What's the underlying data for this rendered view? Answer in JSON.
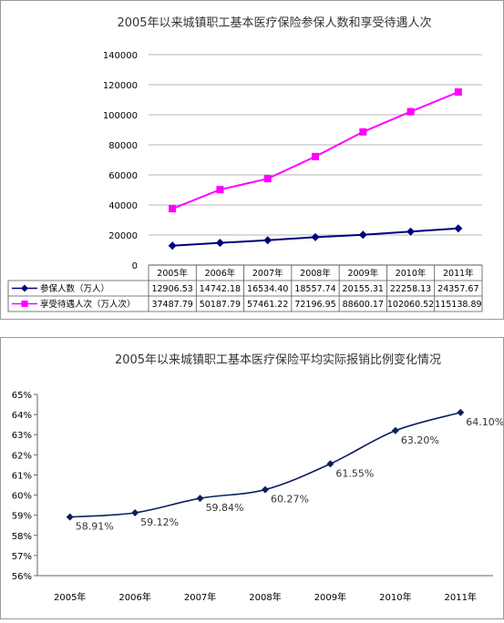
{
  "chart_data": [
    {
      "type": "line",
      "title": "2005年以来城镇职工基本医疗保险参保人数和享受待遇人次",
      "categories": [
        "2005年",
        "2006年",
        "2007年",
        "2008年",
        "2009年",
        "2010年",
        "2011年"
      ],
      "ylim": [
        0,
        140000
      ],
      "yticks": [
        "0",
        "20000",
        "40000",
        "60000",
        "80000",
        "100000",
        "120000",
        "140000"
      ],
      "grid": true,
      "legend": "bottom-table",
      "series": [
        {
          "name": "参保人数（万人）",
          "color": "#000080",
          "marker": "diamond",
          "values": [
            12906.53,
            14742.18,
            16534.4,
            18557.74,
            20155.31,
            22258.13,
            24357.67
          ],
          "labels": [
            "12906.53",
            "14742.18",
            "16534.40",
            "18557.74",
            "20155.31",
            "22258.13",
            "24357.67"
          ]
        },
        {
          "name": "享受待遇人次（万人次）",
          "color": "#ff00ff",
          "marker": "square",
          "values": [
            37487.79,
            50187.79,
            57461.22,
            72196.95,
            88600.17,
            102060.52,
            115138.89
          ],
          "labels": [
            "37487.79",
            "50187.79",
            "57461.22",
            "72196.95",
            "88600.17",
            "102060.52",
            "115138.89"
          ]
        }
      ]
    },
    {
      "type": "line",
      "title": "2005年以来城镇职工基本医疗保险平均实际报销比例变化情况",
      "categories": [
        "2005年",
        "2006年",
        "2007年",
        "2008年",
        "2009年",
        "2010年",
        "2011年"
      ],
      "ylim": [
        56,
        65
      ],
      "yticks": [
        "56%",
        "57%",
        "58%",
        "59%",
        "60%",
        "61%",
        "62%",
        "63%",
        "64%",
        "65%"
      ],
      "grid": false,
      "series": [
        {
          "color": "#0b1f5c",
          "marker": "diamond",
          "values": [
            58.91,
            59.12,
            59.84,
            60.27,
            61.55,
            63.2,
            64.1
          ],
          "labels": [
            "58.91%",
            "59.12%",
            "59.84%",
            "60.27%",
            "61.55%",
            "63.20%",
            "64.10%"
          ]
        }
      ]
    }
  ]
}
